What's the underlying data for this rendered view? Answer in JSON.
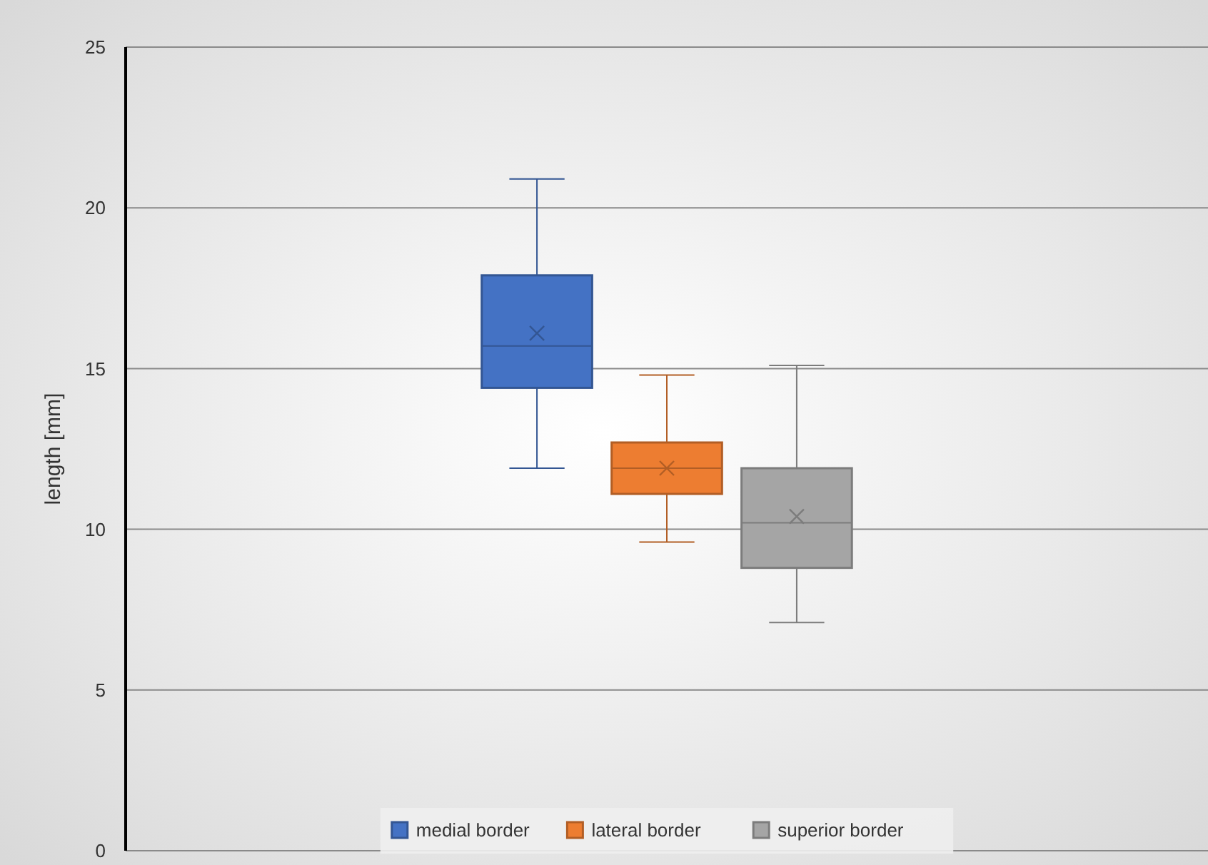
{
  "chart_data": {
    "type": "box",
    "ylabel": "length [mm]",
    "categories": [
      null
    ],
    "ylim": [
      0,
      25
    ],
    "yticks": [
      0,
      5,
      10,
      15,
      20,
      25
    ],
    "grid": "y",
    "legend": "bottom",
    "marker": "cross",
    "series": [
      {
        "name": "medial border",
        "color": "#4472c4",
        "boxes": [
          {
            "low": 11.9,
            "q1": 14.4,
            "median": 15.7,
            "q3": 17.9,
            "high": 20.9,
            "mean": 16.1
          }
        ]
      },
      {
        "name": "lateral border",
        "color": "#ed7d31",
        "boxes": [
          {
            "low": 9.6,
            "q1": 11.1,
            "median": 11.9,
            "q3": 12.7,
            "high": 14.8,
            "mean": 11.9
          }
        ]
      },
      {
        "name": "superior border",
        "color": "#a5a5a5",
        "boxes": [
          {
            "low": 7.1,
            "q1": 8.8,
            "median": 10.2,
            "q3": 11.9,
            "high": 15.1,
            "mean": 10.4
          }
        ]
      }
    ]
  }
}
